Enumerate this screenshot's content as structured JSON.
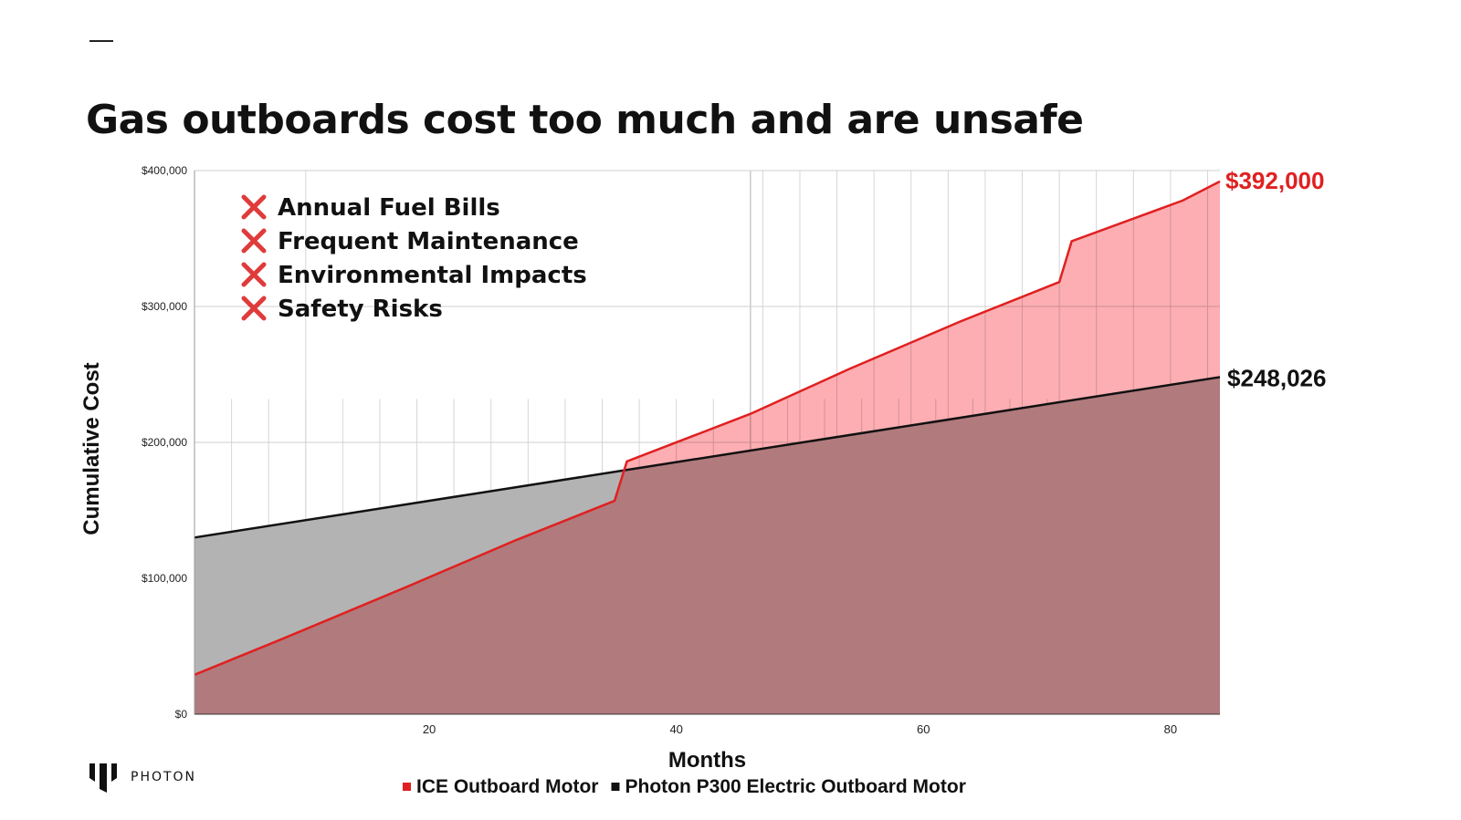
{
  "slide": {
    "title": "Gas outboards cost too much and are unsafe"
  },
  "brand": {
    "name": "PHOTON",
    "logo_icon": "photon-logo-icon"
  },
  "bullets": {
    "icon": "cross-mark-icon",
    "color": "#e03b3b",
    "items": [
      "Annual Fuel Bills",
      "Frequent Maintenance",
      "Environmental Impacts",
      "Safety Risks"
    ]
  },
  "chart_data": {
    "type": "area",
    "title": "",
    "xlabel": "Months",
    "ylabel": "Cumulative Cost",
    "xlim": [
      1,
      84
    ],
    "ylim": [
      0,
      400000
    ],
    "x_ticks": [
      20,
      40,
      60,
      80
    ],
    "y_ticks": [
      {
        "value": 0,
        "label": "$0"
      },
      {
        "value": 100000,
        "label": "$100,000"
      },
      {
        "value": 200000,
        "label": "$200,000"
      },
      {
        "value": 300000,
        "label": "$300,000"
      },
      {
        "value": 400000,
        "label": "$400,000"
      }
    ],
    "grid": true,
    "legend_position": "bottom-center",
    "series": [
      {
        "name": "ICE Outboard Motor",
        "color": "#e02020",
        "fill": "#fcaeb2",
        "end_label": "$392,000",
        "points": [
          [
            1,
            29000
          ],
          [
            8,
            55000
          ],
          [
            18,
            93000
          ],
          [
            27,
            128000
          ],
          [
            35,
            157000
          ],
          [
            36,
            186000
          ],
          [
            46,
            221000
          ],
          [
            54,
            254000
          ],
          [
            63,
            289000
          ],
          [
            71,
            318000
          ],
          [
            72,
            348000
          ],
          [
            81,
            378000
          ],
          [
            84,
            392000
          ]
        ]
      },
      {
        "name": "Photon P300 Electric Outboard Motor",
        "color": "#111111",
        "fill": "#b3b3b3",
        "end_label": "$248,026",
        "points": [
          [
            1,
            130000
          ],
          [
            84,
            248026
          ]
        ]
      }
    ]
  }
}
